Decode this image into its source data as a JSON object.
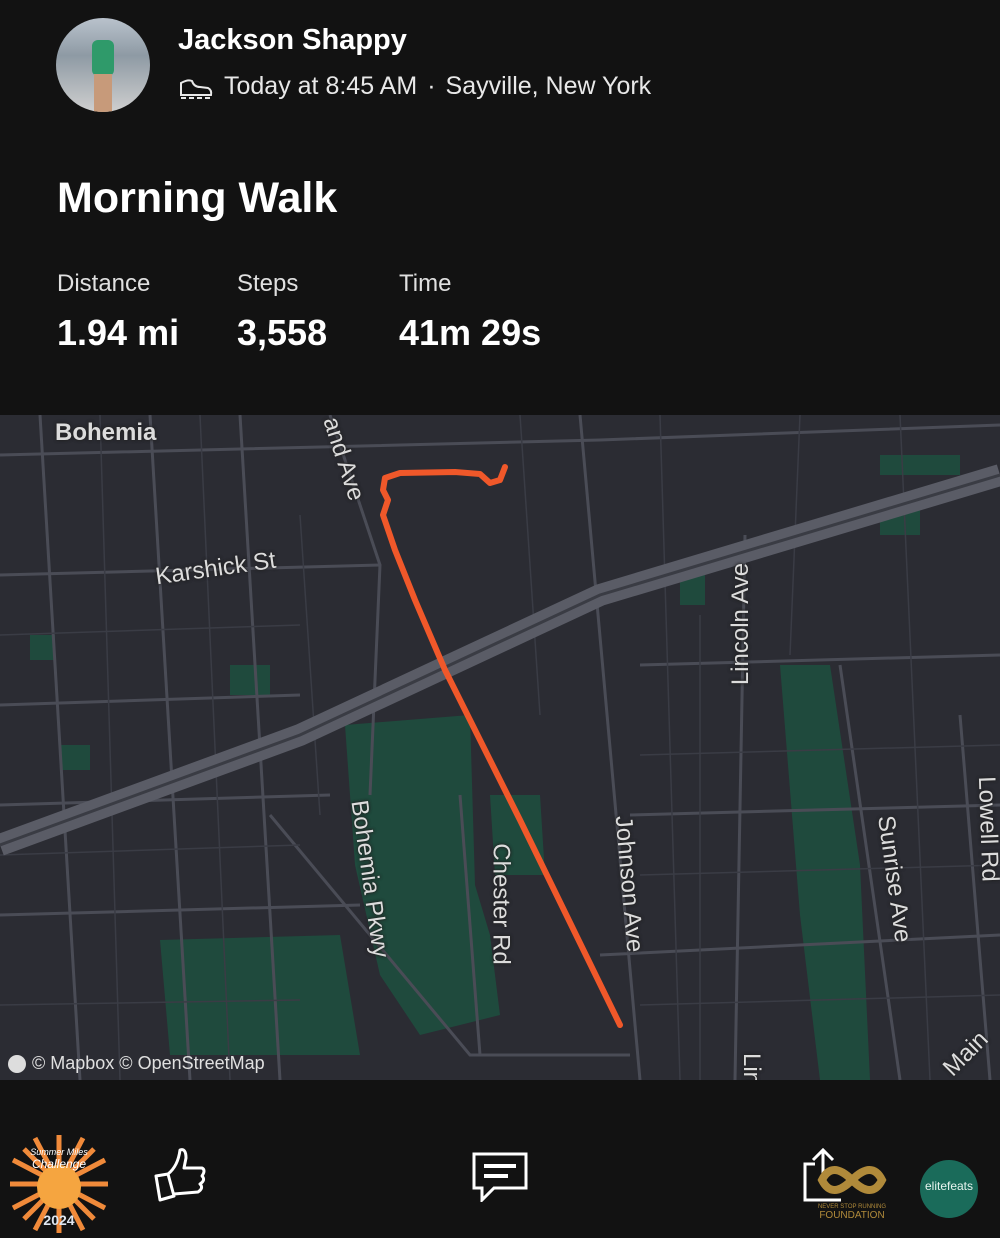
{
  "athlete": {
    "name": "Jackson Shappy",
    "activity_icon": "shoe-icon",
    "time": "Today at 8:45 AM",
    "separator": "·",
    "location": "Sayville, New York"
  },
  "activity": {
    "title": "Morning Walk",
    "stats": [
      {
        "label": "Distance",
        "value": "1.94 mi"
      },
      {
        "label": "Steps",
        "value": "3,558"
      },
      {
        "label": "Time",
        "value": "41m 29s"
      }
    ]
  },
  "map": {
    "route_color": "#f0582a",
    "labels": {
      "bohemia": "Bohemia",
      "and_ave": "and Ave",
      "karshick": "Karshick St",
      "lincoln": "Lincoln Ave",
      "bohemia_pkwy": "Bohemia Pkwy",
      "chester": "Chester Rd",
      "johnson": "Johnson Ave",
      "sunrise": "Sunrise Ave",
      "lowell": "Lowell Rd",
      "lin": "Lin",
      "main": "Main"
    },
    "attribution": "© Mapbox © OpenStreetMap"
  },
  "actions": {
    "badge_text": [
      "Summer Miles",
      "Challenge",
      "2024"
    ],
    "like_icon": "thumbs-up-icon",
    "comment_icon": "comment-icon",
    "share_icon": "share-icon",
    "foundation_text": [
      "NEVER STOP RUNNING",
      "FOUNDATION"
    ],
    "elite_text": "elitefeats"
  }
}
